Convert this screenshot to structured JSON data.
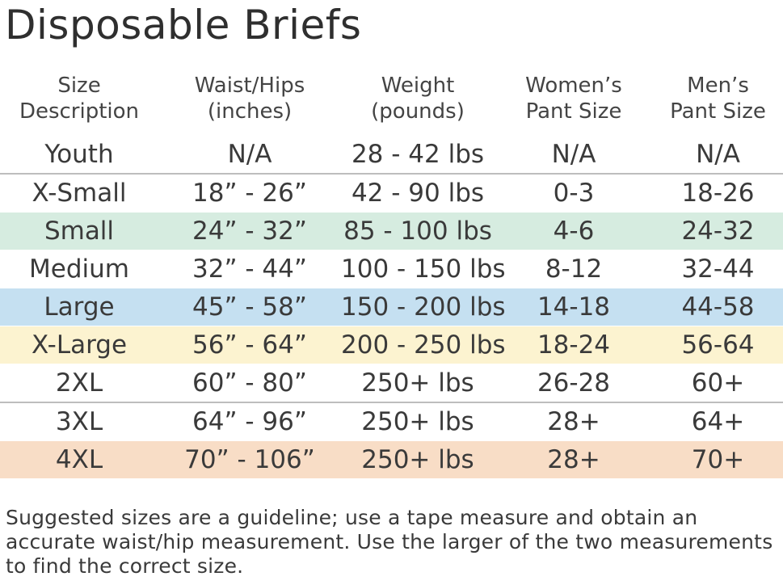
{
  "title": "Disposable Briefs",
  "headers": [
    [
      "Size",
      "Description"
    ],
    [
      "Waist/Hips",
      "(inches)"
    ],
    [
      "Weight",
      "(pounds)"
    ],
    [
      "Women’s",
      "Pant Size"
    ],
    [
      "Men’s",
      "Pant Size"
    ]
  ],
  "rows": [
    {
      "cells": [
        "Youth",
        "N/A",
        "28 - 42 lbs",
        "N/A",
        "N/A"
      ],
      "color": "#ffffff"
    },
    {
      "cells": [
        "X-Small",
        "18” - 26”",
        "42 - 90 lbs",
        "0-3",
        "18-26"
      ],
      "color": "#ffffff"
    },
    {
      "cells": [
        "Small",
        "24” - 32”",
        "85 - 100 lbs",
        "4-6",
        "24-32"
      ],
      "color": "#d6ece0"
    },
    {
      "cells": [
        "Medium",
        "32” - 44”",
        "100 - 150 lbs",
        "8-12",
        "32-44"
      ],
      "color": "#ffffff"
    },
    {
      "cells": [
        "Large",
        "45” - 58”",
        "150 - 200 lbs",
        "14-18",
        "44-58"
      ],
      "color": "#c5e0f1"
    },
    {
      "cells": [
        "X-Large",
        "56” - 64”",
        "200 - 250 lbs",
        "18-24",
        "56-64"
      ],
      "color": "#fcf3d0"
    },
    {
      "cells": [
        "2XL",
        "60” - 80”",
        "250+ lbs",
        "26-28",
        "60+"
      ],
      "color": "#ffffff"
    },
    {
      "cells": [
        "3XL",
        "64” - 96”",
        "250+ lbs",
        "28+",
        "64+"
      ],
      "color": "#ffffff"
    },
    {
      "cells": [
        "4XL",
        "70” - 106”",
        "250+ lbs",
        "28+",
        "70+"
      ],
      "color": "#f8ddc6"
    }
  ],
  "note": "Suggested sizes are a guideline; use a tape measure and obtain an accurate waist/hip measurement. Use the larger of the two measurements to find the correct size."
}
